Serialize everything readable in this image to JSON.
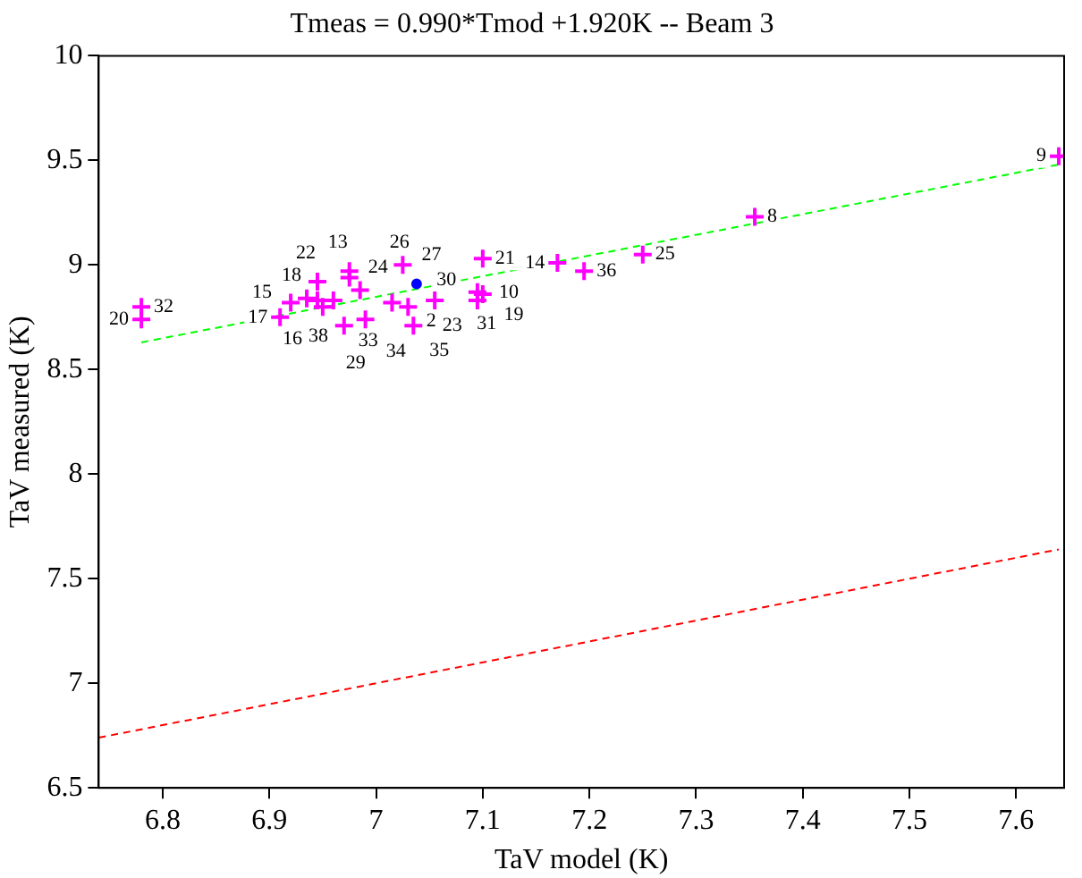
{
  "chart_data": {
    "type": "scatter",
    "title": "Tmeas = 0.990*Tmod +1.920K -- Beam 3",
    "xlabel": "TaV model (K)",
    "ylabel": "TaV measured (K)",
    "xlim": [
      6.74,
      7.645
    ],
    "ylim": [
      6.5,
      10
    ],
    "xticks": [
      6.8,
      6.9,
      7,
      7.1,
      7.2,
      7.3,
      7.4,
      7.5,
      7.6
    ],
    "yticks": [
      6.5,
      7,
      7.5,
      8,
      8.5,
      9,
      9.5,
      10
    ],
    "grid": false,
    "legend": false,
    "series": [
      {
        "color": "#ff00ff",
        "marker": "cross",
        "x": [
          6.78,
          6.78,
          6.91,
          6.92,
          6.935,
          6.945,
          6.95,
          6.96,
          6.945,
          6.975,
          6.975,
          6.985,
          7.015,
          7.03,
          7.055,
          6.97,
          6.99,
          7.035,
          7.025,
          7.1,
          7.095,
          7.1,
          7.095,
          7.17,
          7.195,
          7.25,
          7.355,
          7.64
        ],
        "values": [
          8.8,
          8.74,
          8.75,
          8.82,
          8.84,
          8.83,
          8.8,
          8.83,
          8.92,
          8.94,
          8.97,
          8.88,
          8.82,
          8.8,
          8.83,
          8.71,
          8.74,
          8.71,
          9.0,
          9.03,
          8.87,
          8.86,
          8.83,
          9.01,
          8.97,
          9.05,
          9.23,
          9.52
        ]
      },
      {
        "type": "scatter",
        "color": "#0000ff",
        "marker": "circle",
        "x": [
          7.038
        ],
        "values": [
          8.91
        ]
      },
      {
        "type": "line",
        "color": "#00ff00",
        "line_style": "dashed",
        "x": [
          6.78,
          7.64
        ],
        "values": [
          8.63,
          9.48
        ]
      },
      {
        "type": "line",
        "color": "#ff0000",
        "line_style": "dashed",
        "x": [
          6.74,
          7.64
        ],
        "values": [
          6.74,
          7.64
        ]
      }
    ],
    "annotations": [
      {
        "text": "32",
        "x": 6.78,
        "y": 8.8
      },
      {
        "text": "20",
        "x": 6.78,
        "y": 8.74
      },
      {
        "text": "17",
        "x": 6.91,
        "y": 8.75
      },
      {
        "text": "15",
        "x": 6.92,
        "y": 8.82
      },
      {
        "text": "38",
        "x": 6.935,
        "y": 8.84
      },
      {
        "text": "18",
        "x": 6.945,
        "y": 8.83
      },
      {
        "text": "16",
        "x": 6.95,
        "y": 8.8
      },
      {
        "text": "33",
        "x": 6.96,
        "y": 8.83
      },
      {
        "text": "22",
        "x": 6.945,
        "y": 8.92
      },
      {
        "text": "24",
        "x": 6.975,
        "y": 8.94
      },
      {
        "text": "13",
        "x": 6.975,
        "y": 8.97
      },
      {
        "text": "26",
        "x": 6.985,
        "y": 8.88
      },
      {
        "text": "2",
        "x": 7.015,
        "y": 8.82
      },
      {
        "text": "23",
        "x": 7.03,
        "y": 8.8
      },
      {
        "text": "31",
        "x": 7.055,
        "y": 8.83
      },
      {
        "text": "29",
        "x": 6.97,
        "y": 8.71
      },
      {
        "text": "34",
        "x": 6.99,
        "y": 8.74
      },
      {
        "text": "35",
        "x": 7.035,
        "y": 8.71
      },
      {
        "text": "27",
        "x": 7.025,
        "y": 9.0
      },
      {
        "text": "21",
        "x": 7.1,
        "y": 9.03
      },
      {
        "text": "10",
        "x": 7.095,
        "y": 8.87
      },
      {
        "text": "30",
        "x": 7.1,
        "y": 8.86
      },
      {
        "text": "19",
        "x": 7.095,
        "y": 8.83
      },
      {
        "text": "14",
        "x": 7.17,
        "y": 9.01
      },
      {
        "text": "36",
        "x": 7.195,
        "y": 8.97
      },
      {
        "text": "25",
        "x": 7.25,
        "y": 9.05
      },
      {
        "text": "8",
        "x": 7.355,
        "y": 9.23
      },
      {
        "text": "9",
        "x": 7.64,
        "y": 9.52
      }
    ]
  }
}
